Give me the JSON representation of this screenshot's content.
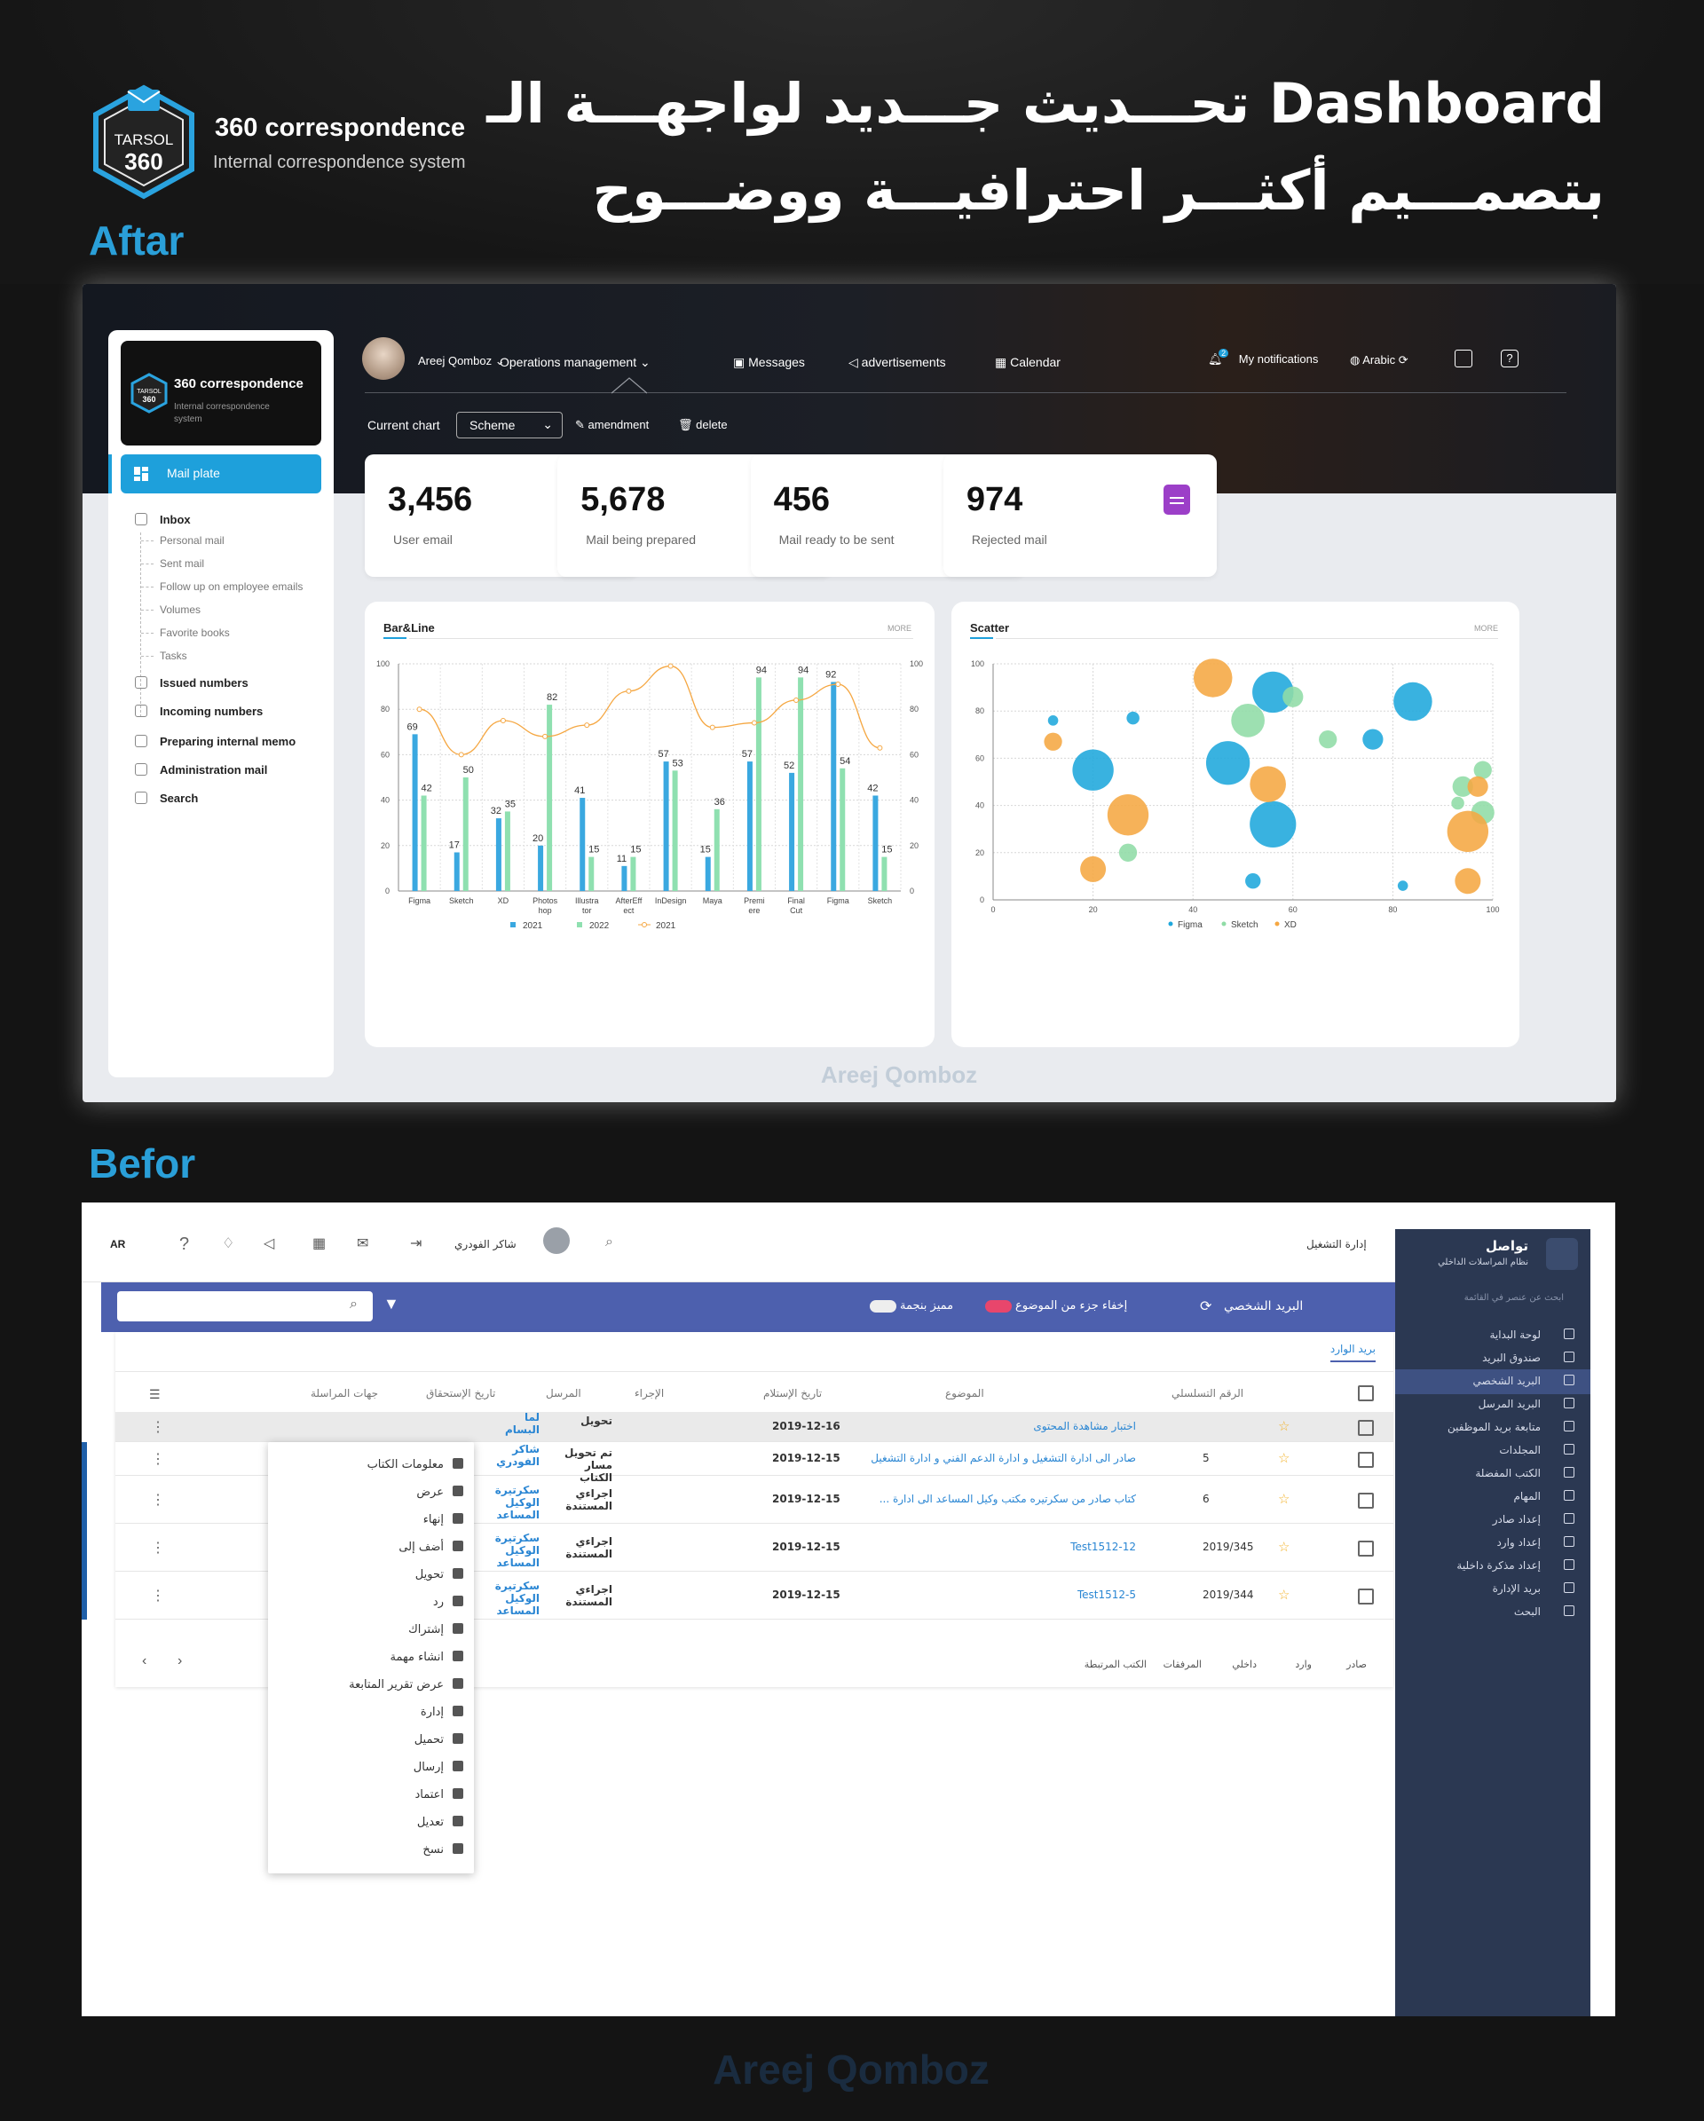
{
  "header": {
    "brand_mark_top": "TARSOL",
    "brand_mark_bottom": "360",
    "brand_title": "360 correspondence",
    "brand_subtitle": "Internal correspondence system",
    "headline_line1": "تحـــديث جـــديد لواجهـــة الـ Dashboard",
    "headline_line2": "بتصمـــيم أكثـــر احترافيـــة ووضـــوح",
    "after_label": "Aftar",
    "before_label": "Befor",
    "watermark": "Areej Qomboz"
  },
  "after": {
    "sidebar": {
      "logo_mark_top": "TARSOL",
      "logo_mark_bottom": "360",
      "logo_title": "360 correspondence",
      "logo_subtitle": "Internal correspondence system",
      "active_item": "Mail plate",
      "inbox": "Inbox",
      "inbox_children": [
        "Personal mail",
        "Sent mail",
        "Follow up on employee emails",
        "Volumes",
        "Favorite books",
        "Tasks"
      ],
      "items": [
        "Issued numbers",
        "Incoming numbers",
        "Preparing internal memo",
        "Administration mail",
        "Search"
      ]
    },
    "topnav": {
      "user_name": "Areej Qomboz",
      "operations": "Operations management",
      "messages": "Messages",
      "advertisements": "advertisements",
      "calendar": "Calendar",
      "notifications": "My notifications",
      "notification_count": "2",
      "language": "Arabic"
    },
    "controls": {
      "current_chart_label": "Current chart",
      "chart_select_value": "Scheme",
      "amendment": "amendment",
      "delete": "delete"
    },
    "stats": [
      {
        "value": "3,456",
        "label": "User email",
        "color": "#29b6e3"
      },
      {
        "value": "5,678",
        "label": "Mail being prepared",
        "color": "#e84a4a"
      },
      {
        "value": "456",
        "label": "Mail ready to be sent",
        "color": "#4caf50"
      },
      {
        "value": "974",
        "label": "Rejected mail",
        "color": "#9c3fc8"
      }
    ],
    "bar_panel": {
      "title": "Bar&Line",
      "more": "MORE"
    },
    "scatter_panel": {
      "title": "Scatter",
      "more": "MORE"
    }
  },
  "chart_data": [
    {
      "type": "bar",
      "title": "Bar&Line",
      "categories": [
        "Figma",
        "Sketch",
        "XD",
        "Photos hop",
        "Illustra tor",
        "AfterEff ect",
        "InDesign",
        "Maya",
        "Premi ere",
        "Final Cut",
        "Figma",
        "Sketch"
      ],
      "series": [
        {
          "name": "2021",
          "kind": "bar",
          "color": "#3aa8e0",
          "values": [
            69,
            17,
            32,
            20,
            41,
            11,
            57,
            15,
            57,
            52,
            92,
            42
          ]
        },
        {
          "name": "2022",
          "kind": "bar",
          "color": "#8fe0b0",
          "values": [
            42,
            50,
            35,
            82,
            15,
            15,
            53,
            36,
            94,
            94,
            54,
            15
          ]
        },
        {
          "name": "2021",
          "kind": "line",
          "color": "#f5a742",
          "values": [
            80,
            60,
            75,
            68,
            73,
            88,
            99,
            72,
            74,
            84,
            91,
            63
          ]
        }
      ],
      "ylim": [
        0,
        100
      ],
      "yticks": [
        0,
        20,
        40,
        60,
        80,
        100
      ],
      "legend_position": "bottom",
      "grid": true
    },
    {
      "type": "scatter",
      "title": "Scatter",
      "xlim": [
        0,
        100
      ],
      "ylim": [
        0,
        100
      ],
      "xticks": [
        0,
        20,
        40,
        60,
        80,
        100
      ],
      "yticks": [
        0,
        20,
        40,
        60,
        80,
        100
      ],
      "legend_position": "bottom",
      "grid": true,
      "series": [
        {
          "name": "Figma",
          "color": "#1ea7dc",
          "points": [
            [
              12,
              76,
              8
            ],
            [
              28,
              77,
              10
            ],
            [
              20,
              55,
              32
            ],
            [
              47,
              58,
              34
            ],
            [
              56,
              88,
              32
            ],
            [
              56,
              32,
              36
            ],
            [
              76,
              68,
              16
            ],
            [
              84,
              84,
              30
            ],
            [
              52,
              8,
              12
            ],
            [
              82,
              6,
              8
            ]
          ]
        },
        {
          "name": "Sketch",
          "color": "#8fdca6",
          "points": [
            [
              51,
              76,
              26
            ],
            [
              60,
              86,
              16
            ],
            [
              67,
              68,
              14
            ],
            [
              27,
              20,
              14
            ],
            [
              93,
              41,
              10
            ],
            [
              98,
              55,
              14
            ],
            [
              98,
              37,
              18
            ],
            [
              94,
              48,
              16
            ]
          ]
        },
        {
          "name": "XD",
          "color": "#f5a742",
          "points": [
            [
              12,
              67,
              14
            ],
            [
              44,
              94,
              30
            ],
            [
              27,
              36,
              32
            ],
            [
              20,
              13,
              20
            ],
            [
              55,
              49,
              28
            ],
            [
              97,
              48,
              16
            ],
            [
              95,
              29,
              32
            ],
            [
              95,
              8,
              20
            ]
          ]
        }
      ]
    }
  ],
  "before": {
    "topbar": {
      "lang": "AR",
      "user": "شاكر الفودري",
      "ops": "إدارة التشغيل"
    },
    "bar": {
      "title": "البريد الشخصي",
      "hide_part": "إخفاء جزء من الموضوع",
      "distinct": "مميز بنجمة"
    },
    "tab": "بريد الوارد",
    "headers": [
      "الرقم التسلسلي",
      "الموضوع",
      "تاريخ الإستلام",
      "الإجراء",
      "المرسل",
      "تاريخ الإستحقاق",
      "جهات المراسلة"
    ],
    "rows": [
      {
        "serial": "",
        "subject": "اختبار مشاهدة المحتوى",
        "date": "2019-12-16",
        "action": "تحويل",
        "sender": "لما البسام"
      },
      {
        "serial": "5",
        "subject": "صادر الى ادارة التشغيل و ادارة الدعم الفني و ادارة التشغيل",
        "date": "2019-12-15",
        "action": "تم تحويل مسار الكتاب",
        "sender": "شاكر الفودري"
      },
      {
        "serial": "6",
        "subject": "كتاب صادر من سكرتيره مكتب وكيل المساعد الى ادارة ...",
        "date": "2019-12-15",
        "action": "اجراءي المستندة",
        "sender": "سكرتيرة الوكيل المساعد"
      },
      {
        "serial": "2019/345",
        "subject": "Test1512-12",
        "date": "2019-12-15",
        "action": "اجراءي المستندة",
        "sender": "سكرتيرة الوكيل المساعد"
      },
      {
        "serial": "2019/344",
        "subject": "Test1512-5",
        "date": "2019-12-15",
        "action": "اجراءي المستندة",
        "sender": "سكرتيرة الوكيل المساعد"
      }
    ],
    "footer": [
      "صادر",
      "وارد",
      "داخلي",
      "المرفقات",
      "الكتب المرتبطة"
    ],
    "context_menu": [
      "معلومات الكتاب",
      "عرض",
      "إنهاء",
      "أضف إلى",
      "تحويل",
      "رد",
      "إشتراك",
      "انشاء مهمة",
      "عرض تقرير المتابعة",
      "إدارة",
      "تحميل",
      "إرسال",
      "اعتماد",
      "تعديل",
      "نسخ"
    ],
    "sidebar": {
      "title": "تواصل",
      "subtitle": "نظام المراسلات الداخلي",
      "search": "ابحث عن عنصر في القائمة",
      "items": [
        "لوحة البداية",
        "صندوق البريد",
        "البريد الشخصي",
        "البريد المرسل",
        "متابعة بريد الموظفين",
        "المجلدات",
        "الكتب المفضلة",
        "المهام",
        "إعداد صادر",
        "إعداد وارد",
        "إعداد مذكرة داخلية",
        "بريد الإدارة",
        "البحث"
      ]
    }
  }
}
